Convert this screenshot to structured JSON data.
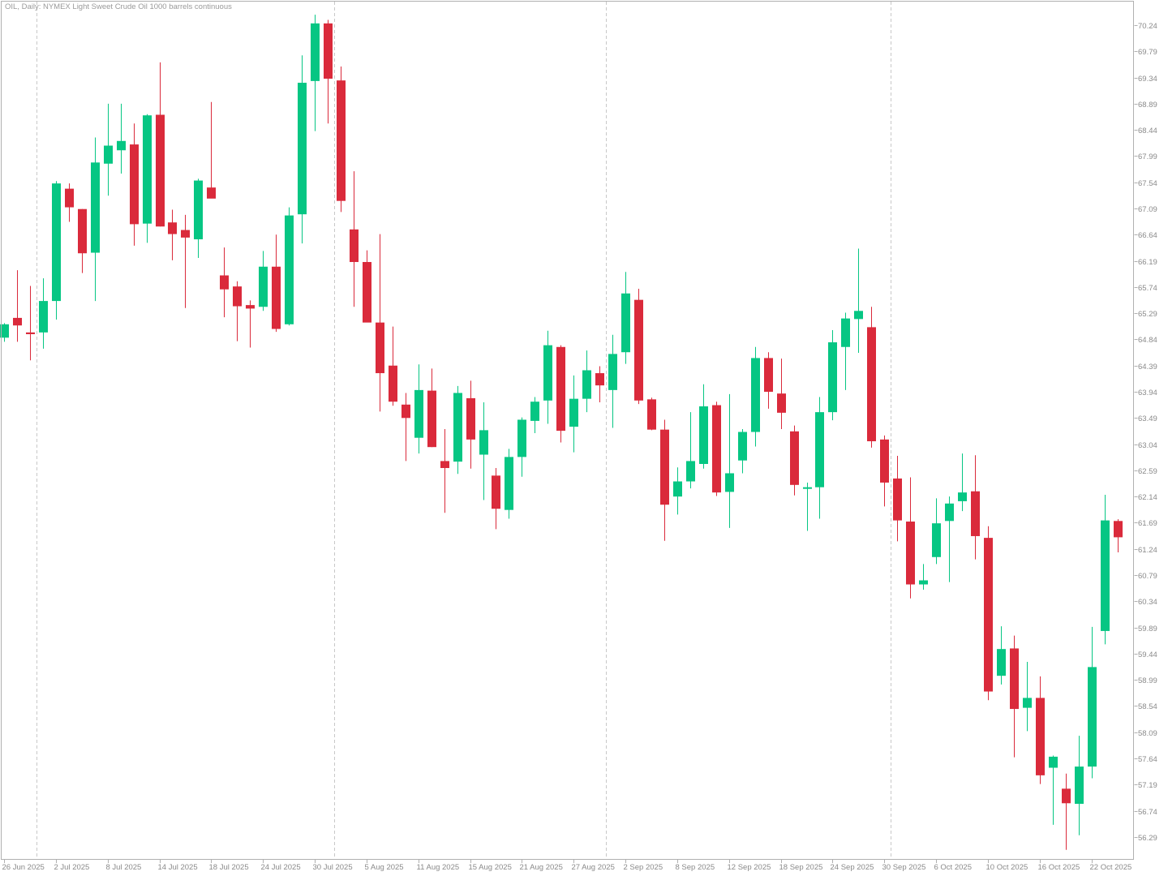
{
  "chart_data": {
    "type": "candlestick",
    "title": "OIL, Daily:  NYMEX Light Sweet Crude Oil 1000 barrels continuous",
    "colors": {
      "up": "#06c683",
      "down": "#da2a3b",
      "axis": "#b0b0b0",
      "grid": "#c8c8c8",
      "text": "#8a8a8a"
    },
    "ylim": [
      56.0,
      70.45
    ],
    "y_ticks": [
      "70.24",
      "69.79",
      "69.34",
      "68.89",
      "68.44",
      "67.99",
      "67.54",
      "67.09",
      "66.64",
      "66.19",
      "65.74",
      "65.29",
      "64.84",
      "64.39",
      "63.94",
      "63.49",
      "63.04",
      "62.59",
      "62.14",
      "61.69",
      "61.24",
      "60.79",
      "60.34",
      "59.89",
      "59.44",
      "58.99",
      "58.54",
      "58.09",
      "57.64",
      "57.19",
      "56.74",
      "56.29"
    ],
    "x_ticks": [
      {
        "i": 0,
        "label": "26 Jun 2025"
      },
      {
        "i": 4,
        "label": "2 Jul 2025"
      },
      {
        "i": 8,
        "label": "8 Jul 2025"
      },
      {
        "i": 12,
        "label": "14 Jul 2025"
      },
      {
        "i": 16,
        "label": "18 Jul 2025"
      },
      {
        "i": 20,
        "label": "24 Jul 2025"
      },
      {
        "i": 24,
        "label": "30 Jul 2025"
      },
      {
        "i": 28,
        "label": "5 Aug 2025"
      },
      {
        "i": 32,
        "label": "11 Aug 2025"
      },
      {
        "i": 36,
        "label": "15 Aug 2025"
      },
      {
        "i": 40,
        "label": "21 Aug 2025"
      },
      {
        "i": 44,
        "label": "27 Aug 2025"
      },
      {
        "i": 48,
        "label": "2 Sep 2025"
      },
      {
        "i": 52,
        "label": "8 Sep 2025"
      },
      {
        "i": 56,
        "label": "12 Sep 2025"
      },
      {
        "i": 60,
        "label": "18 Sep 2025"
      },
      {
        "i": 64,
        "label": "24 Sep 2025"
      },
      {
        "i": 68,
        "label": "30 Sep 2025"
      },
      {
        "i": 72,
        "label": "6 Oct 2025"
      },
      {
        "i": 76,
        "label": "10 Oct 2025"
      },
      {
        "i": 80,
        "label": "16 Oct 2025"
      },
      {
        "i": 84,
        "label": "22 Oct 2025"
      }
    ],
    "period_separators_after": [
      2,
      25,
      46,
      68
    ],
    "candles": [
      {
        "o": 64.87,
        "h": 65.12,
        "l": 64.8,
        "c": 65.1
      },
      {
        "o": 65.21,
        "h": 66.03,
        "l": 64.8,
        "c": 65.08
      },
      {
        "o": 64.96,
        "h": 65.76,
        "l": 64.48,
        "c": 64.93
      },
      {
        "o": 64.96,
        "h": 65.89,
        "l": 64.68,
        "c": 65.5
      },
      {
        "o": 65.5,
        "h": 67.56,
        "l": 65.18,
        "c": 67.52
      },
      {
        "o": 67.43,
        "h": 67.52,
        "l": 66.86,
        "c": 67.11
      },
      {
        "o": 67.08,
        "h": 67.08,
        "l": 65.98,
        "c": 66.32
      },
      {
        "o": 66.33,
        "h": 68.31,
        "l": 65.5,
        "c": 67.88
      },
      {
        "o": 67.86,
        "h": 68.89,
        "l": 67.31,
        "c": 68.17
      },
      {
        "o": 68.09,
        "h": 68.89,
        "l": 67.69,
        "c": 68.25
      },
      {
        "o": 68.19,
        "h": 68.55,
        "l": 66.45,
        "c": 66.82
      },
      {
        "o": 66.83,
        "h": 68.71,
        "l": 66.5,
        "c": 68.69
      },
      {
        "o": 68.7,
        "h": 69.6,
        "l": 66.78,
        "c": 66.78
      },
      {
        "o": 66.85,
        "h": 67.07,
        "l": 66.2,
        "c": 66.65
      },
      {
        "o": 66.72,
        "h": 66.98,
        "l": 65.38,
        "c": 66.59
      },
      {
        "o": 66.56,
        "h": 67.6,
        "l": 66.24,
        "c": 67.57
      },
      {
        "o": 67.45,
        "h": 68.92,
        "l": 67.31,
        "c": 67.26
      },
      {
        "o": 65.94,
        "h": 66.42,
        "l": 65.22,
        "c": 65.7
      },
      {
        "o": 65.75,
        "h": 65.84,
        "l": 64.81,
        "c": 65.41
      },
      {
        "o": 65.43,
        "h": 65.51,
        "l": 64.7,
        "c": 65.37
      },
      {
        "o": 65.4,
        "h": 66.36,
        "l": 65.33,
        "c": 66.09
      },
      {
        "o": 66.09,
        "h": 66.64,
        "l": 64.97,
        "c": 65.02
      },
      {
        "o": 65.1,
        "h": 67.11,
        "l": 65.08,
        "c": 66.97
      },
      {
        "o": 66.99,
        "h": 69.72,
        "l": 66.49,
        "c": 69.25
      },
      {
        "o": 69.28,
        "h": 70.42,
        "l": 68.42,
        "c": 70.27
      },
      {
        "o": 70.27,
        "h": 70.33,
        "l": 68.55,
        "c": 69.32
      },
      {
        "o": 69.29,
        "h": 69.53,
        "l": 67.03,
        "c": 67.22
      },
      {
        "o": 66.73,
        "h": 67.73,
        "l": 65.4,
        "c": 66.17
      },
      {
        "o": 66.17,
        "h": 66.37,
        "l": 65.2,
        "c": 65.13
      },
      {
        "o": 65.13,
        "h": 66.65,
        "l": 63.6,
        "c": 64.26
      },
      {
        "o": 64.39,
        "h": 65.06,
        "l": 63.7,
        "c": 63.77
      },
      {
        "o": 63.72,
        "h": 63.92,
        "l": 62.75,
        "c": 63.49
      },
      {
        "o": 63.15,
        "h": 64.41,
        "l": 62.88,
        "c": 63.97
      },
      {
        "o": 63.96,
        "h": 64.34,
        "l": 62.99,
        "c": 62.99
      },
      {
        "o": 62.75,
        "h": 63.3,
        "l": 61.86,
        "c": 62.63
      },
      {
        "o": 62.74,
        "h": 64.04,
        "l": 62.53,
        "c": 63.92
      },
      {
        "o": 63.83,
        "h": 64.13,
        "l": 62.62,
        "c": 63.12
      },
      {
        "o": 62.86,
        "h": 63.76,
        "l": 62.08,
        "c": 63.28
      },
      {
        "o": 62.5,
        "h": 62.63,
        "l": 61.58,
        "c": 61.93
      },
      {
        "o": 61.91,
        "h": 62.96,
        "l": 61.76,
        "c": 62.82
      },
      {
        "o": 62.82,
        "h": 63.5,
        "l": 62.48,
        "c": 63.46
      },
      {
        "o": 63.44,
        "h": 63.85,
        "l": 63.23,
        "c": 63.77
      },
      {
        "o": 63.79,
        "h": 64.99,
        "l": 63.39,
        "c": 64.74
      },
      {
        "o": 64.71,
        "h": 64.74,
        "l": 63.07,
        "c": 63.27
      },
      {
        "o": 63.34,
        "h": 64.22,
        "l": 62.9,
        "c": 63.82
      },
      {
        "o": 63.82,
        "h": 64.65,
        "l": 63.59,
        "c": 64.31
      },
      {
        "o": 64.26,
        "h": 64.38,
        "l": 63.76,
        "c": 64.05
      },
      {
        "o": 63.97,
        "h": 64.92,
        "l": 63.32,
        "c": 64.59
      },
      {
        "o": 64.62,
        "h": 66.0,
        "l": 64.42,
        "c": 65.63
      },
      {
        "o": 65.52,
        "h": 65.71,
        "l": 63.73,
        "c": 63.79
      },
      {
        "o": 63.81,
        "h": 63.84,
        "l": 63.28,
        "c": 63.29
      },
      {
        "o": 63.29,
        "h": 63.46,
        "l": 61.38,
        "c": 62.0
      },
      {
        "o": 62.14,
        "h": 62.64,
        "l": 61.83,
        "c": 62.4
      },
      {
        "o": 62.4,
        "h": 63.59,
        "l": 62.28,
        "c": 62.75
      },
      {
        "o": 62.7,
        "h": 64.07,
        "l": 62.62,
        "c": 63.69
      },
      {
        "o": 63.71,
        "h": 63.77,
        "l": 62.15,
        "c": 62.21
      },
      {
        "o": 62.22,
        "h": 63.9,
        "l": 61.6,
        "c": 62.54
      },
      {
        "o": 62.76,
        "h": 63.3,
        "l": 62.54,
        "c": 63.25
      },
      {
        "o": 63.25,
        "h": 64.71,
        "l": 63.0,
        "c": 64.52
      },
      {
        "o": 64.52,
        "h": 64.62,
        "l": 63.65,
        "c": 63.94
      },
      {
        "o": 63.91,
        "h": 64.51,
        "l": 63.3,
        "c": 63.58
      },
      {
        "o": 63.26,
        "h": 63.36,
        "l": 62.16,
        "c": 62.34
      },
      {
        "o": 62.3,
        "h": 62.38,
        "l": 61.55,
        "c": 62.3
      },
      {
        "o": 62.3,
        "h": 63.85,
        "l": 61.76,
        "c": 63.59
      },
      {
        "o": 63.59,
        "h": 65.0,
        "l": 63.45,
        "c": 64.79
      },
      {
        "o": 64.71,
        "h": 65.3,
        "l": 63.97,
        "c": 65.2
      },
      {
        "o": 65.19,
        "h": 66.4,
        "l": 64.61,
        "c": 65.33
      },
      {
        "o": 65.05,
        "h": 65.4,
        "l": 62.98,
        "c": 63.09
      },
      {
        "o": 63.12,
        "h": 63.19,
        "l": 61.97,
        "c": 62.38
      },
      {
        "o": 62.45,
        "h": 62.84,
        "l": 61.37,
        "c": 61.73
      },
      {
        "o": 61.71,
        "h": 62.47,
        "l": 60.39,
        "c": 60.63
      },
      {
        "o": 60.63,
        "h": 60.98,
        "l": 60.54,
        "c": 60.7
      },
      {
        "o": 61.1,
        "h": 62.11,
        "l": 60.98,
        "c": 61.68
      },
      {
        "o": 61.72,
        "h": 62.14,
        "l": 60.67,
        "c": 62.02
      },
      {
        "o": 62.06,
        "h": 62.88,
        "l": 61.89,
        "c": 62.21
      },
      {
        "o": 62.23,
        "h": 62.85,
        "l": 61.06,
        "c": 61.46
      },
      {
        "o": 61.43,
        "h": 61.63,
        "l": 58.64,
        "c": 58.79
      },
      {
        "o": 59.06,
        "h": 59.91,
        "l": 58.91,
        "c": 59.52
      },
      {
        "o": 59.53,
        "h": 59.75,
        "l": 57.66,
        "c": 58.49
      },
      {
        "o": 58.51,
        "h": 59.3,
        "l": 58.11,
        "c": 58.68
      },
      {
        "o": 58.68,
        "h": 59.05,
        "l": 57.2,
        "c": 57.35
      },
      {
        "o": 57.48,
        "h": 57.69,
        "l": 56.5,
        "c": 57.67
      },
      {
        "o": 57.12,
        "h": 57.38,
        "l": 56.07,
        "c": 56.87
      },
      {
        "o": 56.86,
        "h": 58.03,
        "l": 56.32,
        "c": 57.5
      },
      {
        "o": 57.5,
        "h": 59.9,
        "l": 57.3,
        "c": 59.21
      },
      {
        "o": 59.83,
        "h": 62.17,
        "l": 59.6,
        "c": 61.73
      },
      {
        "o": 61.72,
        "h": 61.75,
        "l": 61.18,
        "c": 61.44
      }
    ]
  }
}
